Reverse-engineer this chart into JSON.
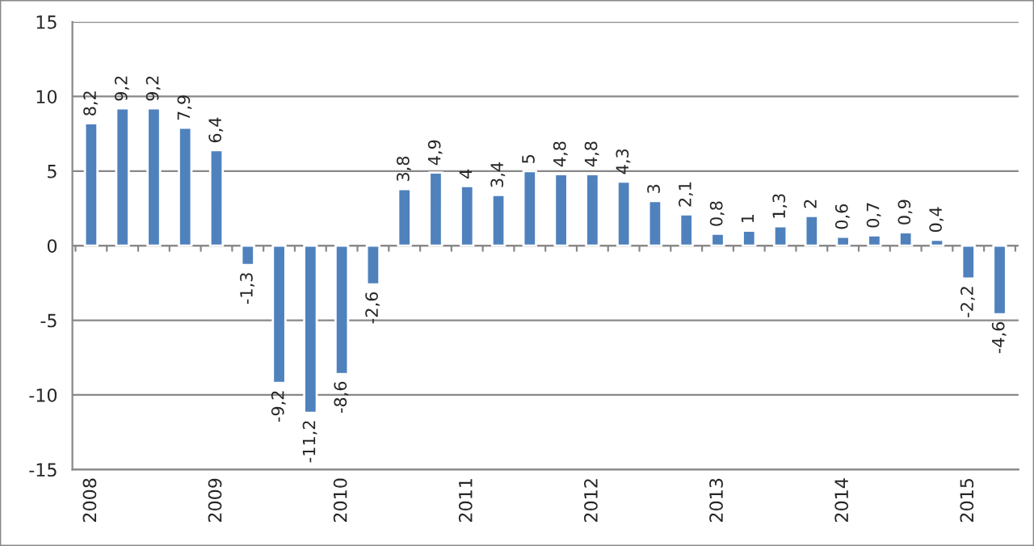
{
  "chart_data": {
    "type": "bar",
    "categories": [
      "2008",
      null,
      null,
      null,
      "2009",
      null,
      null,
      null,
      "2010",
      null,
      null,
      null,
      "2011",
      null,
      null,
      null,
      "2012",
      null,
      null,
      null,
      "2013",
      null,
      null,
      null,
      "2014",
      null,
      null,
      null,
      "2015",
      null
    ],
    "values": [
      8.2,
      9.2,
      9.2,
      7.9,
      6.4,
      -1.3,
      -9.2,
      -11.2,
      -8.6,
      -2.6,
      3.8,
      4.9,
      4,
      3.4,
      5,
      4.8,
      4.8,
      4.3,
      3,
      2.1,
      0.8,
      1,
      1.3,
      2,
      0.6,
      0.7,
      0.9,
      0.4,
      -2.2,
      -4.6
    ],
    "value_labels": [
      "8,2",
      "9,2",
      "9,2",
      "7,9",
      "6,4",
      "-1,3",
      "-9,2",
      "-11,2",
      "-8,6",
      "-2,6",
      "3,8",
      "4,9",
      "4",
      "3,4",
      "5",
      "4,8",
      "4,8",
      "4,3",
      "3",
      "2,1",
      "0,8",
      "1",
      "1,3",
      "2",
      "0,6",
      "0,7",
      "0,9",
      "0,4",
      "-2,2",
      "-4,6"
    ],
    "color": "#4f81bd",
    "ylim": [
      -15,
      15
    ],
    "yticks": [
      -15,
      -10,
      -5,
      0,
      5,
      10,
      15
    ],
    "grid": "y"
  }
}
